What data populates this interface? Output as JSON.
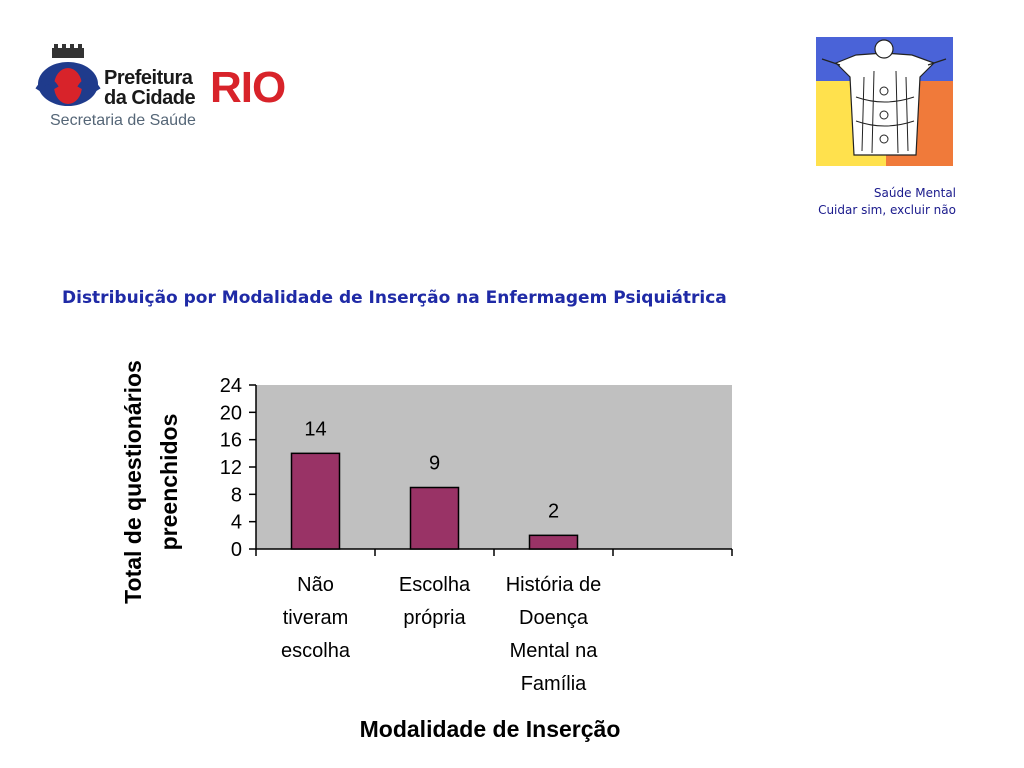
{
  "header": {
    "logo_line1": "Prefeitura",
    "logo_line2": "da Cidade",
    "logo_rio": "RIO",
    "subtitle": "Secretaria de Saúde",
    "brand_line1": "Saúde Mental",
    "brand_line2": "Cuidar sim, excluir não"
  },
  "colors": {
    "bar": "#993366",
    "plot_bg": "#c0c0c0",
    "title": "#1f2aa6"
  },
  "chart_data": {
    "type": "bar",
    "title": "Distribuição por Modalidade de Inserção na Enfermagem Psiquiátrica",
    "xlabel": "Modalidade de Inserção",
    "ylabel_lines": [
      "Total de questionários",
      "preenchidos"
    ],
    "categories": [
      [
        "Não",
        "tiveram",
        "escolha"
      ],
      [
        "Escolha",
        "própria"
      ],
      [
        "História de",
        "Doença",
        "Mental na",
        "Família"
      ]
    ],
    "values": [
      14,
      9,
      2
    ],
    "data_labels": [
      "14",
      "9",
      "2"
    ],
    "y_ticks": [
      0,
      4,
      8,
      12,
      16,
      20,
      24
    ],
    "ylim": [
      0,
      24
    ],
    "empty_category_slots": 1,
    "grid": false,
    "legend": "none"
  }
}
